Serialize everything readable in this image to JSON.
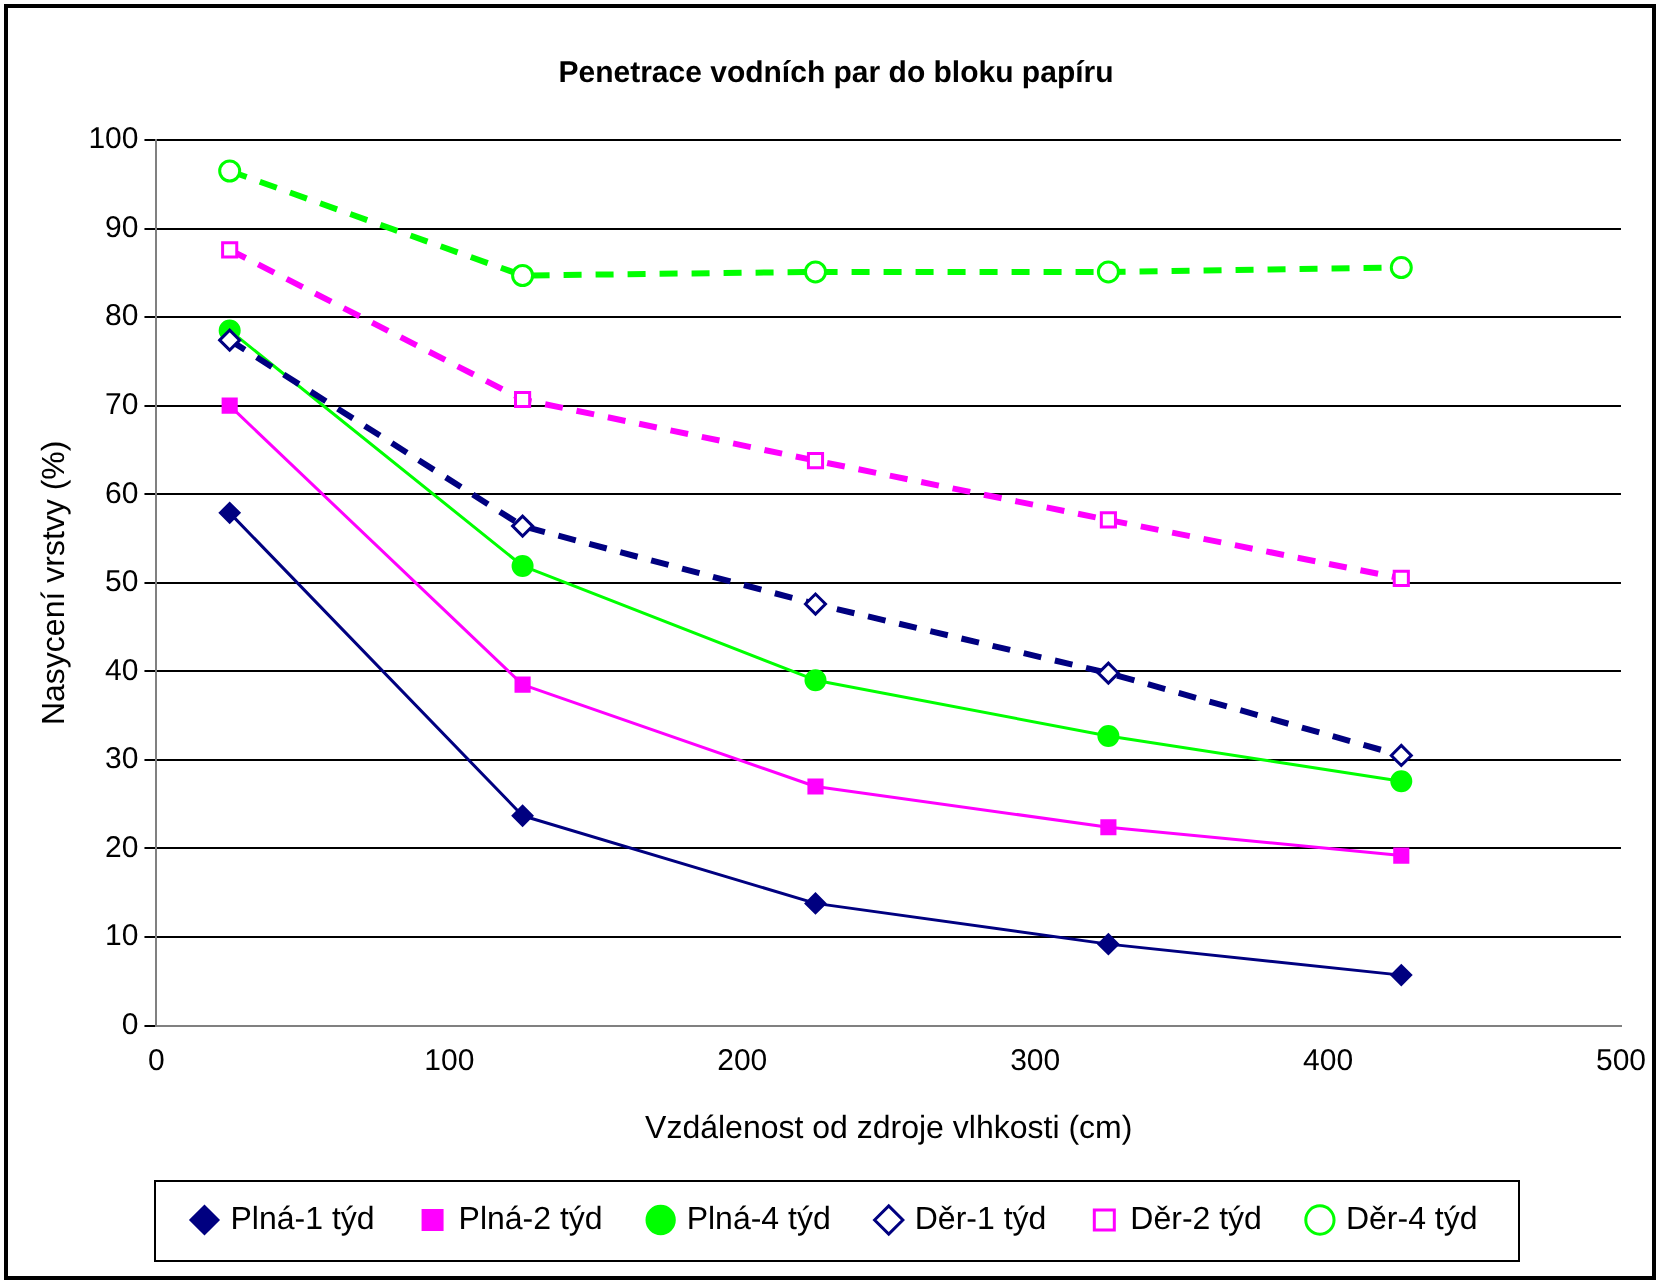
{
  "chart_data": {
    "type": "line",
    "title": "Penetrace vodních par do bloku papíru",
    "xlabel": "Vzdálenost od zdroje vlhkosti (cm)",
    "ylabel": "Nasycení vrstvy (%)",
    "x": [
      25,
      125,
      225,
      325,
      425
    ],
    "xlim": [
      0,
      500
    ],
    "xticks": [
      0,
      100,
      200,
      300,
      400,
      500
    ],
    "ylim": [
      0,
      100
    ],
    "yticks": [
      0,
      10,
      20,
      30,
      40,
      50,
      60,
      70,
      80,
      90,
      100
    ],
    "grid": "y",
    "legend": "bottom",
    "series": [
      {
        "name": "Plná-1 týd",
        "color": "#000080",
        "marker": "diamond",
        "line_style": "solid",
        "values": [
          57.9,
          23.7,
          13.8,
          9.2,
          5.7
        ]
      },
      {
        "name": "Plná-2 týd",
        "color": "#ff00ff",
        "marker": "square",
        "line_style": "solid",
        "values": [
          70,
          38.5,
          27,
          22.4,
          19.2
        ]
      },
      {
        "name": "Plná-4 týd",
        "color": "#00ff00",
        "marker": "circle",
        "line_style": "solid",
        "values": [
          78.5,
          51.9,
          39,
          32.7,
          27.6
        ]
      },
      {
        "name": "Děr-1 týd",
        "color": "#000080",
        "marker": "diamond",
        "line_style": "dashed",
        "values": [
          77.4,
          56.4,
          47.6,
          39.8,
          30.5
        ]
      },
      {
        "name": "Děr-2 týd",
        "color": "#ff00ff",
        "marker": "square",
        "line_style": "dashed",
        "values": [
          87.6,
          70.7,
          63.8,
          57.1,
          50.5
        ]
      },
      {
        "name": "Děr-4 týd",
        "color": "#00ff00",
        "marker": "circle",
        "line_style": "dashed",
        "values": [
          96.5,
          84.7,
          85.1,
          85.1,
          85.6
        ]
      }
    ]
  }
}
